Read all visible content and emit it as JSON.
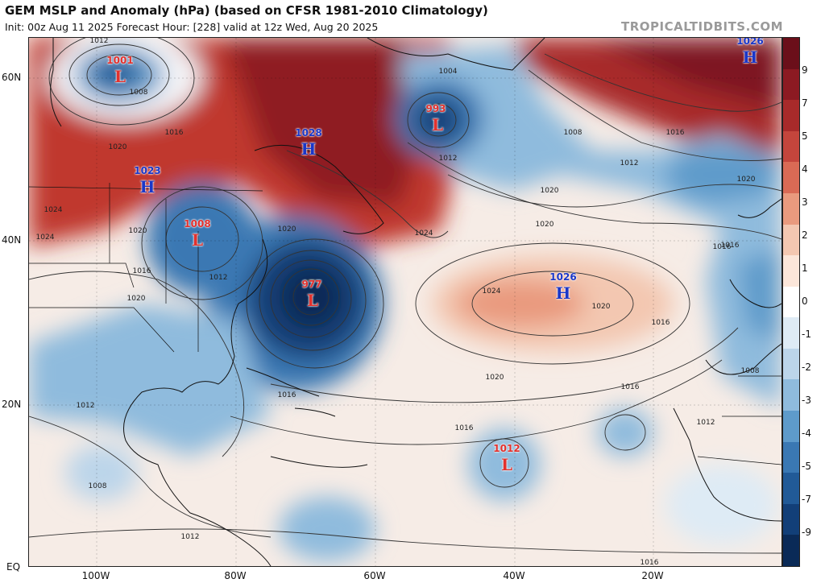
{
  "title": {
    "main": "GEM MSLP and Anomaly (hPa) (based on CFSR 1981-2010 Climatology)",
    "subtitle": "Init: 00z Aug 11 2025   Forecast Hour: [228]   valid at 12z Wed, Aug 20 2025"
  },
  "watermark": "TROPICALTIDBITS.COM",
  "axes": {
    "lat_labels": [
      "60N",
      "40N",
      "20N",
      "EQ"
    ],
    "lon_labels": [
      "100W",
      "80W",
      "60W",
      "40W",
      "20W"
    ]
  },
  "colorbar": {
    "labels": [
      "9",
      "7",
      "5",
      "4",
      "3",
      "2",
      "1",
      "0",
      "-1",
      "-2",
      "-3",
      "-4",
      "-5",
      "-7",
      "-9"
    ],
    "colors": [
      "#6b0f1a",
      "#8c1a22",
      "#a82a2a",
      "#c4453c",
      "#d96a55",
      "#e99a7e",
      "#f3c7b1",
      "#fbe6da",
      "#ffffff",
      "#deebf5",
      "#bcd5ea",
      "#8fbbdd",
      "#5e9bcb",
      "#3a78b3",
      "#215a97",
      "#123f78",
      "#0a2a57"
    ]
  },
  "pressure_centers": [
    {
      "type": "L",
      "value": "1001",
      "kind": "low"
    },
    {
      "type": "L",
      "value": "993",
      "kind": "low"
    },
    {
      "type": "H",
      "value": "1028",
      "kind": "high"
    },
    {
      "type": "H",
      "value": "1023",
      "kind": "high"
    },
    {
      "type": "L",
      "value": "1008",
      "kind": "low"
    },
    {
      "type": "L",
      "value": "977",
      "kind": "low"
    },
    {
      "type": "H",
      "value": "1026",
      "kind": "high"
    },
    {
      "type": "H",
      "value": "1026",
      "kind": "high"
    },
    {
      "type": "L",
      "value": "1012",
      "kind": "low"
    }
  ],
  "isobar_labels": [
    "1012",
    "1008",
    "1016",
    "1020",
    "1024",
    "1020",
    "1024",
    "1016",
    "1020",
    "1004",
    "1012",
    "1008",
    "1012",
    "1016",
    "1020",
    "1020",
    "1020",
    "1016",
    "1012",
    "1020",
    "1024",
    "1024",
    "1020",
    "1016",
    "1016",
    "1016",
    "1020",
    "1016",
    "1012",
    "1008",
    "1012",
    "1016",
    "1008",
    "1012",
    "1016"
  ]
}
